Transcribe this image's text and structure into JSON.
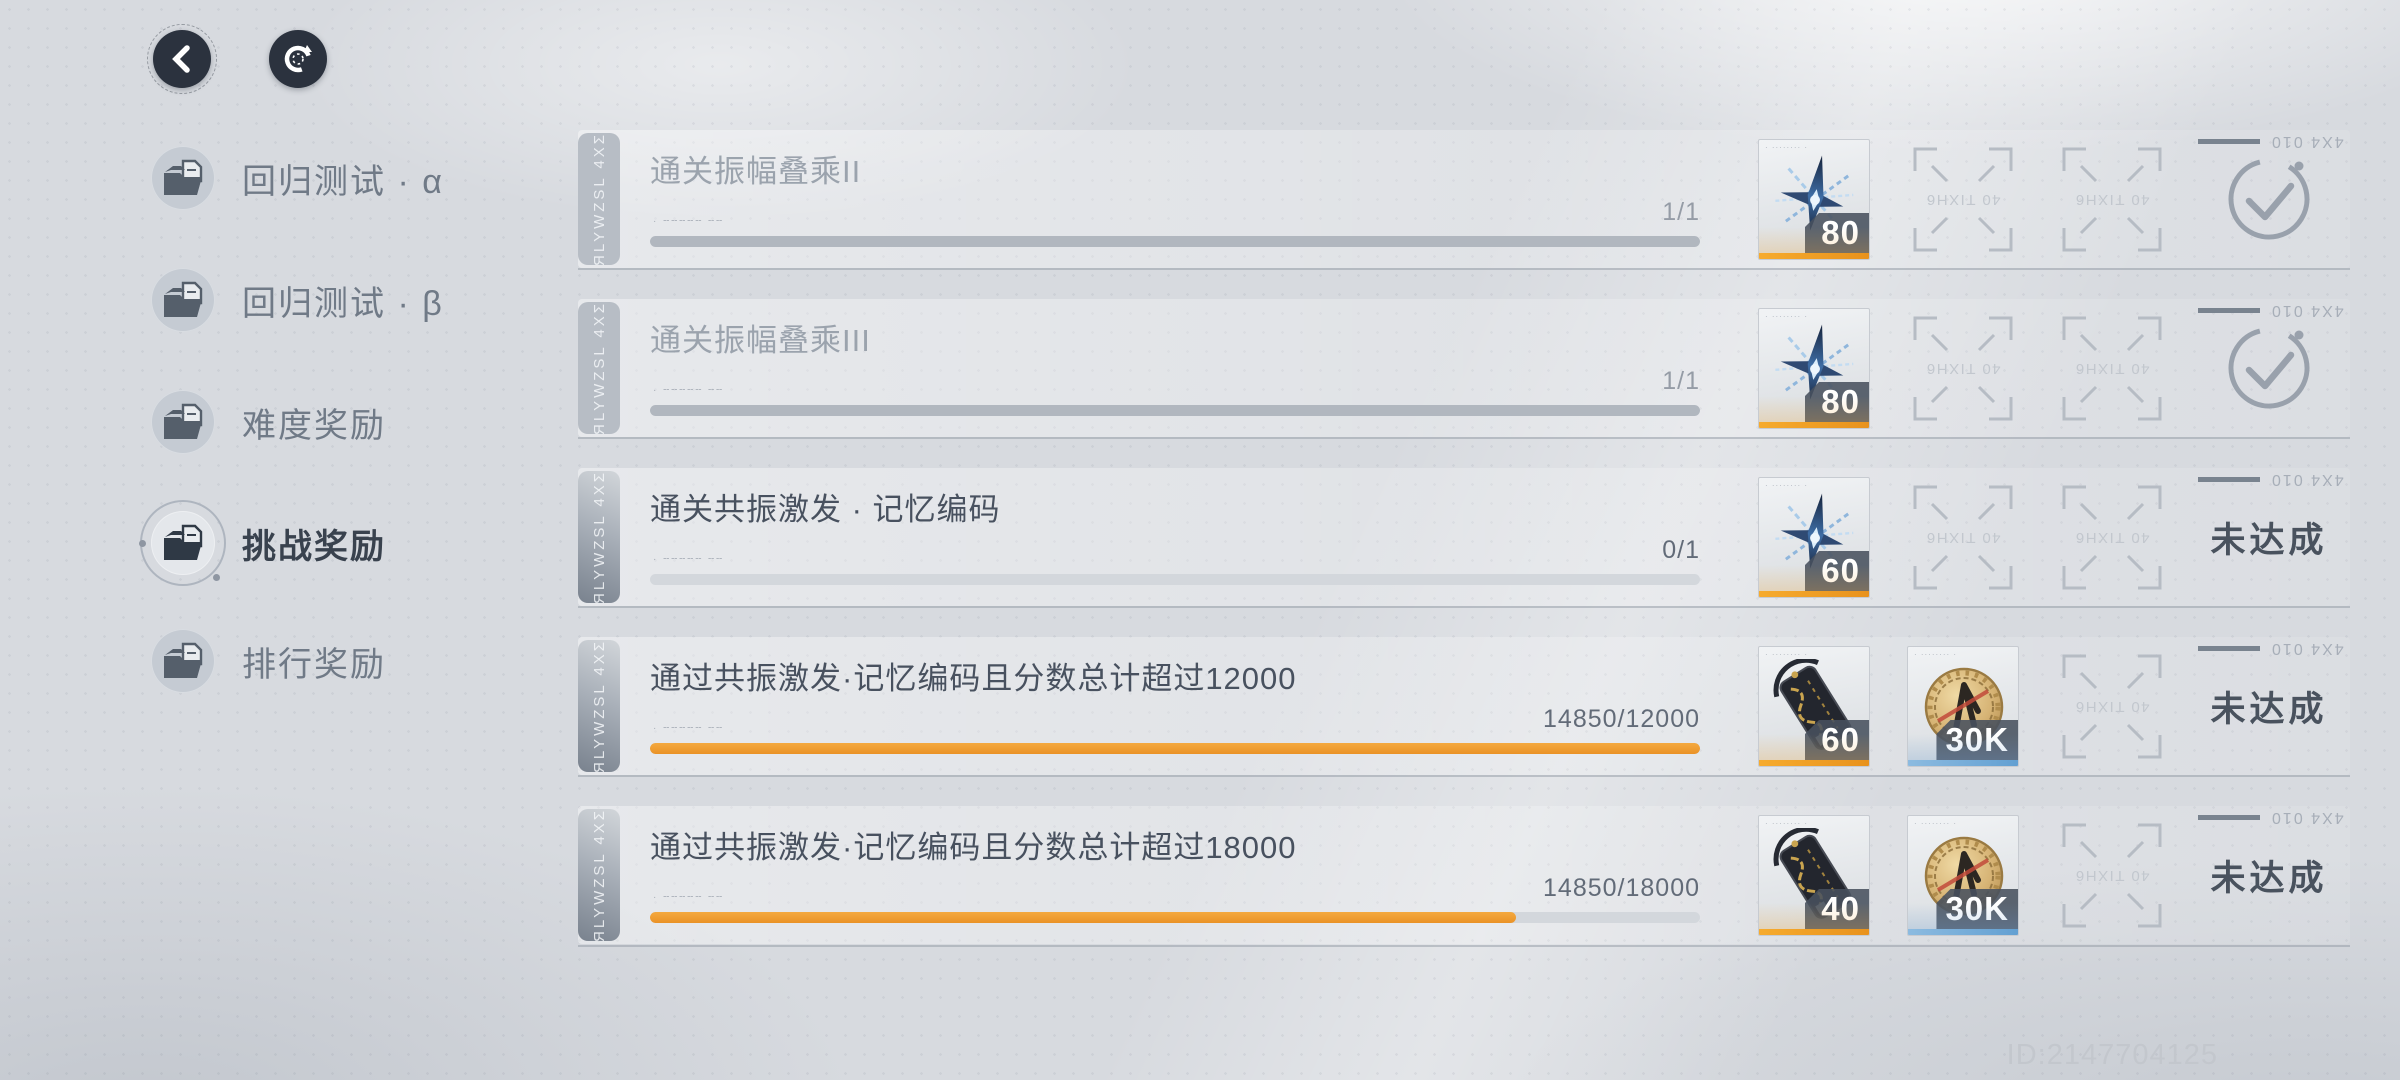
{
  "header": {
    "back_icon": "chevron-left",
    "refresh_icon": "refresh"
  },
  "sidebar": {
    "items": [
      {
        "key": "regression-test-alpha",
        "label": "回归测试 · α",
        "selected": false
      },
      {
        "key": "regression-test-beta",
        "label": "回归测试 · β",
        "selected": false
      },
      {
        "key": "difficulty-rewards",
        "label": "难度奖励",
        "selected": false
      },
      {
        "key": "challenge-rewards",
        "label": "挑战奖励",
        "selected": true
      },
      {
        "key": "ranking-rewards",
        "label": "排行奖励",
        "selected": false
      }
    ]
  },
  "rows": [
    {
      "title": "通关振幅叠乘II",
      "state": "done",
      "progress_text": "1/1",
      "progress_pct": 100,
      "bar": "done",
      "rewards": [
        {
          "item": "crystal-star",
          "qty": "80",
          "accent": "orange"
        }
      ],
      "empty_slots": 2,
      "status": "check",
      "status_label": ""
    },
    {
      "title": "通关振幅叠乘III",
      "state": "done",
      "progress_text": "1/1",
      "progress_pct": 100,
      "bar": "done",
      "rewards": [
        {
          "item": "crystal-star",
          "qty": "80",
          "accent": "orange"
        }
      ],
      "empty_slots": 2,
      "status": "check",
      "status_label": ""
    },
    {
      "title": "通关共振激发 · 记忆编码",
      "state": "active",
      "progress_text": "0/1",
      "progress_pct": 0,
      "bar": "empty",
      "rewards": [
        {
          "item": "crystal-star",
          "qty": "60",
          "accent": "orange"
        }
      ],
      "empty_slots": 2,
      "status": "unreached",
      "status_label": "未达成"
    },
    {
      "title": "通过共振激发·记忆编码且分数总计超过12000",
      "state": "active",
      "progress_text": "14850/12000",
      "progress_pct": 100,
      "bar": "orange",
      "rewards": [
        {
          "item": "gold-tablet",
          "qty": "60",
          "accent": "orange"
        },
        {
          "item": "gold-coin",
          "qty": "30K",
          "accent": "blue"
        }
      ],
      "empty_slots": 1,
      "status": "unreached",
      "status_label": "未达成"
    },
    {
      "title": "通过共振激发·记忆编码且分数总计超过18000",
      "state": "active",
      "progress_text": "14850/18000",
      "progress_pct": 82.5,
      "bar": "orange",
      "rewards": [
        {
          "item": "gold-tablet",
          "qty": "40",
          "accent": "orange"
        },
        {
          "item": "gold-coin",
          "qty": "30K",
          "accent": "blue"
        }
      ],
      "empty_slots": 1,
      "status": "unreached",
      "status_label": "未达成"
    }
  ],
  "decor": {
    "tab_text": "ЯLYWZSL 4XΣ",
    "corner_text": "4X4 010",
    "slot_text": "40 TIXH6",
    "card_top": "· ········ ·",
    "bar_marker": "· ╌╌╌╌╌ ╌╌"
  },
  "footer": {
    "player_id": "ID:2147704125"
  },
  "colors": {
    "accent_orange": "#ee9c3b",
    "accent_blue": "#6fa8d8",
    "bar_done": "#b1b7bf",
    "badge_bg": "#48515f",
    "background": "#d7dadf"
  }
}
